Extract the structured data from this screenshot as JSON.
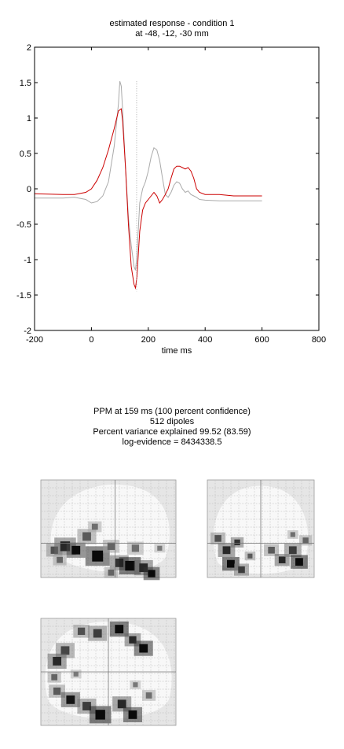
{
  "chart_title": {
    "line1": "estimated response - condition 1",
    "line2": "at -48, -12, -30 mm"
  },
  "chart_data": {
    "type": "line",
    "xlabel": "time  ms",
    "ylabel": "",
    "xlim": [
      -200,
      800
    ],
    "ylim": [
      -2,
      2
    ],
    "x_ticks": [
      -200,
      0,
      200,
      400,
      600,
      800
    ],
    "x_tick_labels": [
      "-200",
      "0",
      "200",
      "400",
      "600",
      "800"
    ],
    "y_ticks": [
      2,
      1.5,
      1,
      0.5,
      0,
      -0.5,
      -1,
      -1.5,
      -2
    ],
    "y_tick_labels": [
      "2",
      "1.5",
      "1",
      "0.5",
      "0",
      "-0.5",
      "-1",
      "-1.5",
      "-2"
    ],
    "grid": false,
    "vline_x": 159,
    "series": [
      {
        "color": "#cc0000",
        "x": [
          -200,
          -100,
          -60,
          -20,
          0,
          20,
          40,
          60,
          80,
          95,
          105,
          110,
          120,
          130,
          140,
          150,
          155,
          160,
          170,
          180,
          190,
          200,
          210,
          220,
          230,
          240,
          250,
          260,
          270,
          280,
          290,
          300,
          310,
          320,
          330,
          340,
          350,
          360,
          370,
          380,
          400,
          450,
          500,
          600
        ],
        "y": [
          -0.07,
          -0.08,
          -0.08,
          -0.05,
          0.0,
          0.12,
          0.3,
          0.55,
          0.85,
          1.1,
          1.13,
          0.95,
          0.3,
          -0.5,
          -1.1,
          -1.35,
          -1.4,
          -1.25,
          -0.6,
          -0.3,
          -0.2,
          -0.15,
          -0.1,
          -0.05,
          -0.1,
          -0.2,
          -0.15,
          -0.08,
          0.0,
          0.15,
          0.28,
          0.32,
          0.32,
          0.3,
          0.28,
          0.3,
          0.25,
          0.15,
          0.0,
          -0.05,
          -0.08,
          -0.08,
          -0.1,
          -0.1
        ]
      },
      {
        "color": "#aaaaaa",
        "x": [
          -200,
          -100,
          -60,
          -20,
          0,
          20,
          40,
          60,
          80,
          95,
          100,
          105,
          110,
          120,
          130,
          140,
          150,
          155,
          160,
          170,
          180,
          190,
          200,
          210,
          220,
          230,
          240,
          250,
          260,
          270,
          280,
          290,
          300,
          310,
          320,
          330,
          340,
          350,
          360,
          370,
          380,
          400,
          450,
          500,
          600
        ],
        "y": [
          -0.13,
          -0.13,
          -0.12,
          -0.15,
          -0.2,
          -0.18,
          -0.1,
          0.1,
          0.6,
          1.2,
          1.52,
          1.45,
          1.1,
          0.3,
          -0.4,
          -0.8,
          -1.1,
          -1.15,
          -0.95,
          -0.2,
          0.0,
          0.1,
          0.25,
          0.45,
          0.58,
          0.55,
          0.4,
          0.15,
          -0.08,
          -0.12,
          -0.05,
          0.05,
          0.1,
          0.08,
          0.0,
          -0.05,
          -0.03,
          -0.08,
          -0.1,
          -0.12,
          -0.15,
          -0.16,
          -0.17,
          -0.17,
          -0.17
        ]
      }
    ]
  },
  "ppm_summary": {
    "line1": "PPM at 159 ms (100 percent confidence)",
    "line2": "512 dipoles",
    "line3": "Percent variance explained 99.52 (83.59)",
    "line4": "log-evidence = 8434338.5"
  },
  "glass_brain": {
    "sagittal_blobs": [
      {
        "u": 0.1,
        "v": 0.72,
        "r": 0.06,
        "d": 0.4
      },
      {
        "u": 0.18,
        "v": 0.68,
        "r": 0.08,
        "d": 0.6
      },
      {
        "u": 0.26,
        "v": 0.72,
        "r": 0.07,
        "d": 0.75
      },
      {
        "u": 0.34,
        "v": 0.58,
        "r": 0.07,
        "d": 0.35
      },
      {
        "u": 0.42,
        "v": 0.78,
        "r": 0.09,
        "d": 0.85
      },
      {
        "u": 0.52,
        "v": 0.68,
        "r": 0.06,
        "d": 0.3
      },
      {
        "u": 0.58,
        "v": 0.85,
        "r": 0.07,
        "d": 0.55
      },
      {
        "u": 0.66,
        "v": 0.88,
        "r": 0.08,
        "d": 0.95
      },
      {
        "u": 0.76,
        "v": 0.9,
        "r": 0.07,
        "d": 0.6
      },
      {
        "u": 0.82,
        "v": 0.96,
        "r": 0.06,
        "d": 0.85
      },
      {
        "u": 0.7,
        "v": 0.7,
        "r": 0.06,
        "d": 0.25
      },
      {
        "u": 0.88,
        "v": 0.7,
        "r": 0.04,
        "d": 0.2
      },
      {
        "u": 0.4,
        "v": 0.48,
        "r": 0.05,
        "d": 0.25
      },
      {
        "u": 0.14,
        "v": 0.82,
        "r": 0.05,
        "d": 0.3
      },
      {
        "u": 0.52,
        "v": 0.95,
        "r": 0.05,
        "d": 0.3
      }
    ],
    "coronal_blobs": [
      {
        "u": 0.1,
        "v": 0.6,
        "r": 0.07,
        "d": 0.4
      },
      {
        "u": 0.18,
        "v": 0.72,
        "r": 0.08,
        "d": 0.6
      },
      {
        "u": 0.22,
        "v": 0.86,
        "r": 0.08,
        "d": 0.95
      },
      {
        "u": 0.28,
        "v": 0.64,
        "r": 0.06,
        "d": 0.55
      },
      {
        "u": 0.32,
        "v": 0.92,
        "r": 0.07,
        "d": 0.5
      },
      {
        "u": 0.4,
        "v": 0.78,
        "r": 0.05,
        "d": 0.35
      },
      {
        "u": 0.6,
        "v": 0.72,
        "r": 0.07,
        "d": 0.35
      },
      {
        "u": 0.7,
        "v": 0.82,
        "r": 0.07,
        "d": 0.6
      },
      {
        "u": 0.8,
        "v": 0.72,
        "r": 0.08,
        "d": 0.5
      },
      {
        "u": 0.86,
        "v": 0.84,
        "r": 0.08,
        "d": 0.95
      },
      {
        "u": 0.92,
        "v": 0.62,
        "r": 0.06,
        "d": 0.3
      },
      {
        "u": 0.8,
        "v": 0.56,
        "r": 0.05,
        "d": 0.25
      }
    ],
    "axial_blobs": [
      {
        "u": 0.3,
        "v": 0.12,
        "r": 0.06,
        "d": 0.4
      },
      {
        "u": 0.42,
        "v": 0.14,
        "r": 0.07,
        "d": 0.5
      },
      {
        "u": 0.58,
        "v": 0.1,
        "r": 0.07,
        "d": 0.95
      },
      {
        "u": 0.68,
        "v": 0.2,
        "r": 0.06,
        "d": 0.6
      },
      {
        "u": 0.76,
        "v": 0.28,
        "r": 0.07,
        "d": 0.85
      },
      {
        "u": 0.18,
        "v": 0.3,
        "r": 0.07,
        "d": 0.45
      },
      {
        "u": 0.12,
        "v": 0.4,
        "r": 0.07,
        "d": 0.6
      },
      {
        "u": 0.1,
        "v": 0.55,
        "r": 0.05,
        "d": 0.3
      },
      {
        "u": 0.12,
        "v": 0.68,
        "r": 0.06,
        "d": 0.35
      },
      {
        "u": 0.22,
        "v": 0.76,
        "r": 0.07,
        "d": 0.7
      },
      {
        "u": 0.34,
        "v": 0.82,
        "r": 0.07,
        "d": 0.5
      },
      {
        "u": 0.44,
        "v": 0.9,
        "r": 0.08,
        "d": 0.95
      },
      {
        "u": 0.6,
        "v": 0.8,
        "r": 0.07,
        "d": 0.6
      },
      {
        "u": 0.68,
        "v": 0.9,
        "r": 0.07,
        "d": 0.85
      },
      {
        "u": 0.8,
        "v": 0.72,
        "r": 0.05,
        "d": 0.25
      },
      {
        "u": 0.7,
        "v": 0.62,
        "r": 0.04,
        "d": 0.2
      },
      {
        "u": 0.26,
        "v": 0.52,
        "r": 0.04,
        "d": 0.2
      }
    ]
  }
}
